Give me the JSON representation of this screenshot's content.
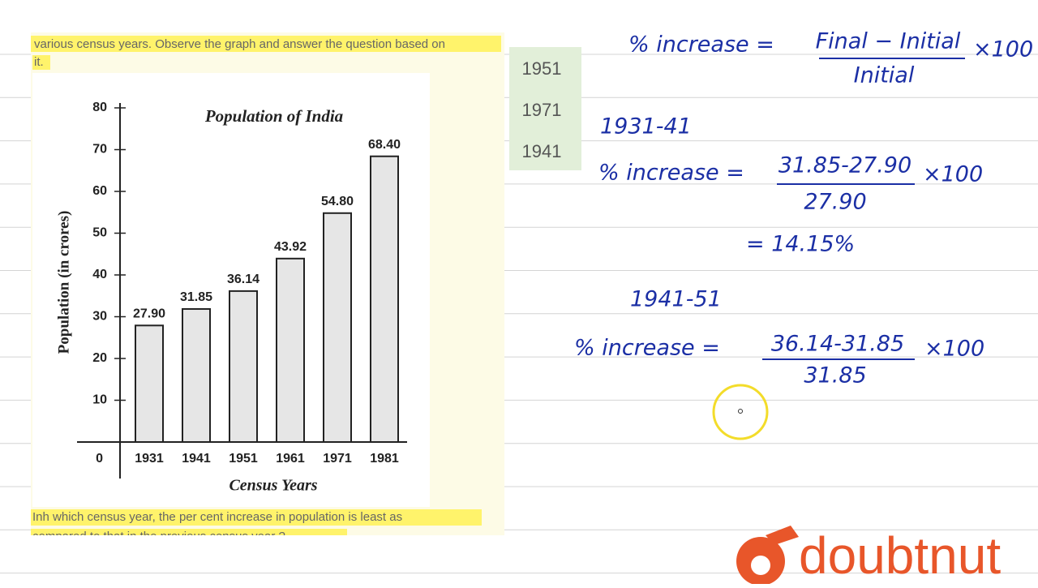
{
  "question_top": [
    "various census years. Observe the graph and answer the question based on",
    "it."
  ],
  "chart_data": {
    "type": "bar",
    "title": "Population of India",
    "y_label": "Population (in crores)",
    "x_label": "Census Years",
    "categories": [
      "1931",
      "1941",
      "1951",
      "1961",
      "1971",
      "1981"
    ],
    "values": [
      27.9,
      31.85,
      36.14,
      43.92,
      54.8,
      68.4
    ],
    "value_labels": [
      "27.90",
      "31.85",
      "36.14",
      "43.92",
      "54.80",
      "68.40"
    ],
    "color": "#e6e6e6",
    "ylim": [
      0,
      80
    ],
    "yticks": [
      0,
      10,
      20,
      30,
      40,
      50,
      60,
      70,
      80
    ]
  },
  "question_bottom": [
    "Inh which census year, the per cent increase in population is least as",
    "compared to that in the previous census year ?"
  ],
  "options": [
    "1951",
    "1971",
    "1941"
  ],
  "notes": {
    "formula": {
      "lhs": "% increase =",
      "numerator": "Final − Initial",
      "denominator": "Initial",
      "factor": "×100"
    },
    "step1": {
      "period": "1931-41",
      "lhs": "% increase =",
      "numerator": "31.85-27.90",
      "denominator": "27.90",
      "factor": "×100",
      "result": "= 14.15%"
    },
    "step2": {
      "period": "1941-51",
      "lhs": "% increase =",
      "numerator": "36.14-31.85",
      "denominator": "31.85",
      "factor": "×100"
    }
  },
  "logo": "doubtnut"
}
